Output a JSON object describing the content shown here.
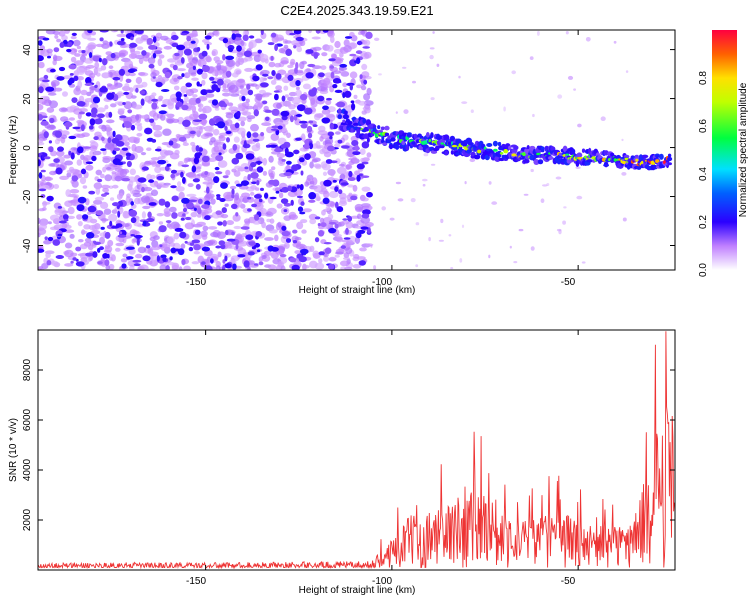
{
  "title": "C2E4.2025.343.19.59.E21",
  "chart_data": [
    {
      "type": "heatmap",
      "name": "spectrogram",
      "xlabel": "Height of straight line (km)",
      "ylabel": "Frequency (Hz)",
      "xlim": [
        -195,
        -24
      ],
      "ylim": [
        -50,
        48
      ],
      "xticks": [
        -150,
        -100,
        -50
      ],
      "yticks": [
        -40,
        -20,
        0,
        20,
        40
      ],
      "noise_region_x": [
        -195,
        -106
      ],
      "signal_track": {
        "x": [
          -114,
          -110,
          -105,
          -100,
          -95,
          -90,
          -85,
          -80,
          -75,
          -70,
          -65,
          -60,
          -55,
          -50,
          -45,
          -40,
          -35,
          -30,
          -25
        ],
        "freq_hz": [
          12,
          9,
          6,
          4,
          3,
          2,
          1,
          0,
          -1,
          -2,
          -3,
          -3,
          -3,
          -4,
          -4,
          -5,
          -6,
          -6,
          -5
        ]
      },
      "colorbar": {
        "label": "Normalized spectral amplitude",
        "range": [
          0,
          1
        ],
        "ticks": [
          0.0,
          0.2,
          0.4,
          0.6,
          0.8
        ]
      }
    },
    {
      "type": "line",
      "name": "snr",
      "xlabel": "Height of straight line (km)",
      "ylabel": "SNR (10 * v/v)",
      "xlim": [
        -195,
        -24
      ],
      "ylim": [
        0,
        9600
      ],
      "xticks": [
        -150,
        -100,
        -50
      ],
      "yticks": [
        2000,
        4000,
        6000,
        8000
      ],
      "color": "#ee3333",
      "envelope": {
        "x": [
          -195,
          -150,
          -106,
          -104,
          -100,
          -95,
          -90,
          -85,
          -80,
          -78,
          -75,
          -72,
          -70,
          -65,
          -60,
          -55,
          -50,
          -45,
          -40,
          -36,
          -33,
          -31,
          -29,
          -27,
          -26.5,
          -26,
          -25,
          -24
        ],
        "y": [
          300,
          300,
          350,
          600,
          1400,
          2200,
          2400,
          2600,
          3600,
          3400,
          3200,
          3000,
          2400,
          2000,
          2200,
          2400,
          2000,
          1800,
          1800,
          1900,
          3200,
          4200,
          5500,
          7200,
          8600,
          6200,
          6400,
          6000
        ]
      }
    }
  ],
  "tick_labels": {
    "top_x": [
      "-150",
      "-100",
      "-50"
    ],
    "top_y": [
      "40",
      "20",
      "0",
      "-20",
      "-40"
    ],
    "cbar": [
      "0.0",
      "0.2",
      "0.4",
      "0.6",
      "0.8"
    ],
    "bottom_x": [
      "-150",
      "-100",
      "-50"
    ],
    "bottom_y": [
      "2000",
      "4000",
      "6000",
      "8000"
    ]
  }
}
